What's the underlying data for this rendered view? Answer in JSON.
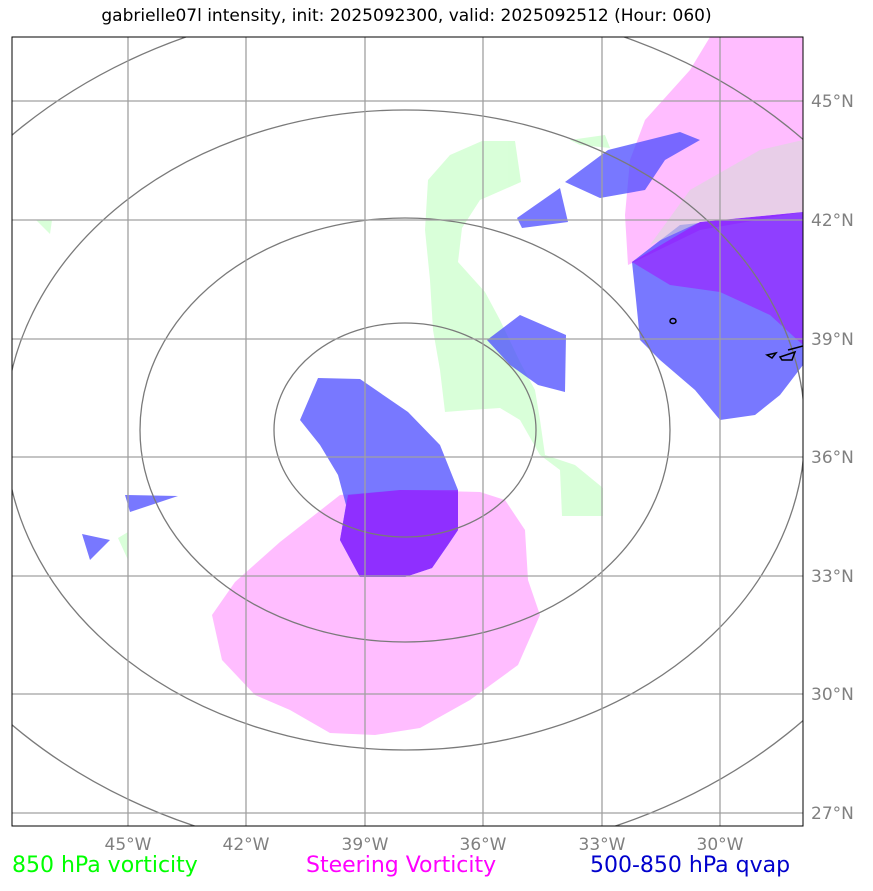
{
  "title": "gabrielle07l intensity, init: 2025092300, valid: 2025092512 (Hour: 060)",
  "longitude_labels": [
    "45°W",
    "42°W",
    "39°W",
    "36°W",
    "33°W",
    "30°W"
  ],
  "latitude_labels": [
    "45°N",
    "42°N",
    "39°N",
    "36°N",
    "33°N",
    "30°N",
    "27°N"
  ],
  "legend": [
    {
      "label": "850 hPa vorticity",
      "color": "#00ff00"
    },
    {
      "label": "Steering Vorticity",
      "color": "#ff00ff"
    },
    {
      "label": "500-850 hPa qvap",
      "color": "#0000cc"
    }
  ],
  "colors": {
    "vort850": "#ccffcc",
    "steering": "#ffaaff",
    "qvap_light": "#5a5aff",
    "qvap_dark": "#6a00ff",
    "grid": "#a0a0a0",
    "rings": "#7a7a7a"
  }
}
